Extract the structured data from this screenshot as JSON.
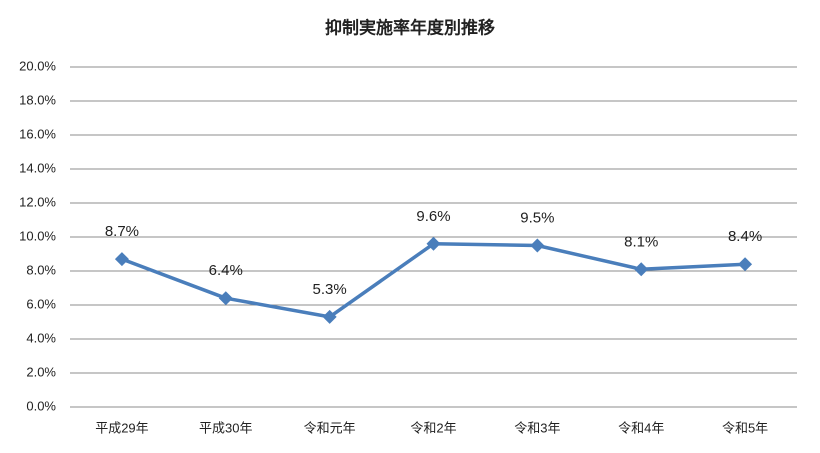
{
  "chart_data": {
    "type": "line",
    "title": "抑制実施率年度別推移",
    "categories": [
      "平成29年",
      "平成30年",
      "令和元年",
      "令和2年",
      "令和3年",
      "令和4年",
      "令和5年"
    ],
    "values": [
      8.7,
      6.4,
      5.3,
      9.6,
      9.5,
      8.1,
      8.4
    ],
    "value_labels": [
      "8.7%",
      "6.4%",
      "5.3%",
      "9.6%",
      "9.5%",
      "8.1%",
      "8.4%"
    ],
    "color": "#4a7ebb",
    "ylim": [
      0,
      20
    ],
    "yticks": [
      {
        "value": 0,
        "label": "0.0%"
      },
      {
        "value": 2,
        "label": "2.0%"
      },
      {
        "value": 4,
        "label": "4.0%"
      },
      {
        "value": 6,
        "label": "6.0%"
      },
      {
        "value": 8,
        "label": "8.0%"
      },
      {
        "value": 10,
        "label": "10.0%"
      },
      {
        "value": 12,
        "label": "12.0%"
      },
      {
        "value": 14,
        "label": "14.0%"
      },
      {
        "value": 16,
        "label": "16.0%"
      },
      {
        "value": 18,
        "label": "18.0%"
      },
      {
        "value": 20,
        "label": "20.0%"
      }
    ],
    "grid": true
  }
}
